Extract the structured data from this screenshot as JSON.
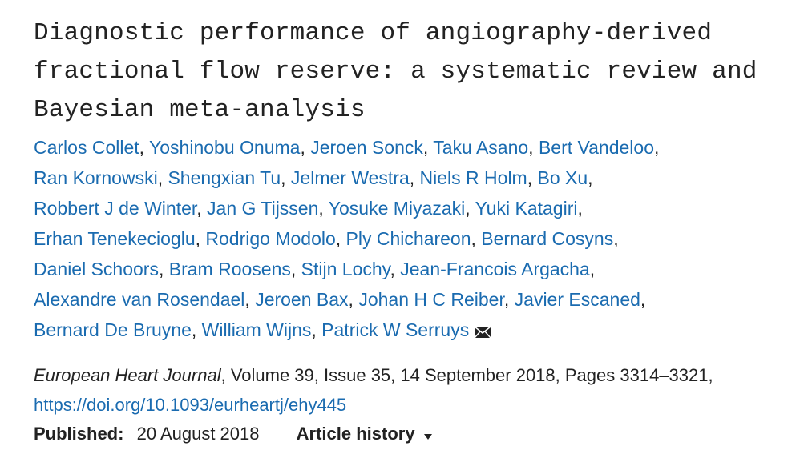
{
  "title": "Diagnostic performance of angiography-derived fractional flow reserve: a systematic review and Bayesian meta-analysis",
  "authors": {
    "separator": ",",
    "lines": [
      [
        "Carlos Collet",
        "Yoshinobu Onuma",
        "Jeroen Sonck",
        "Taku Asano",
        "Bert Vandeloo"
      ],
      [
        "Ran Kornowski",
        "Shengxian Tu",
        "Jelmer Westra",
        "Niels R Holm",
        "Bo Xu"
      ],
      [
        "Robbert J de Winter",
        "Jan G Tijssen",
        "Yosuke Miyazaki",
        "Yuki Katagiri"
      ],
      [
        "Erhan Tenekecioglu",
        "Rodrigo Modolo",
        "Ply Chichareon",
        "Bernard Cosyns"
      ],
      [
        "Daniel Schoors",
        "Bram Roosens",
        "Stijn Lochy",
        "Jean-Francois Argacha"
      ],
      [
        "Alexandre van Rosendael",
        "Jeroen Bax",
        "Johan H C Reiber",
        "Javier Escaned"
      ],
      [
        "Bernard De Bruyne",
        "William Wijns",
        "Patrick W Serruys"
      ]
    ]
  },
  "citation": {
    "journal": "European Heart Journal",
    "details": ", Volume 39, Issue 35, 14 September 2018, Pages 3314–3321, ",
    "doi": "https://doi.org/10.1093/eurheartj/ehy445"
  },
  "published": {
    "label": "Published:",
    "date": "20 August 2018"
  },
  "article_history": "Article history"
}
